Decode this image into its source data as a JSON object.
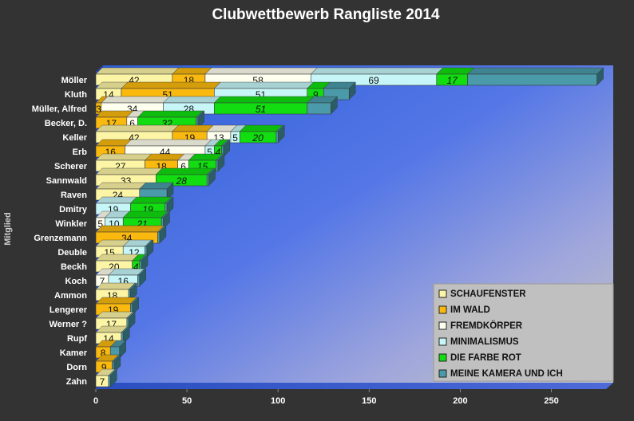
{
  "chart_data": {
    "type": "bar",
    "orientation": "horizontal",
    "stacked": true,
    "title": "Clubwettbewerb Rangliste 2014",
    "ylabel": "Mitglied",
    "xlabel": "",
    "xlim": [
      0,
      280
    ],
    "xticks": [
      0,
      50,
      100,
      150,
      200,
      250
    ],
    "grid": false,
    "legend_position": "bottom-right",
    "categories": [
      "Möller",
      "Kluth",
      "Müller, Alfred",
      "Becker, D.",
      "Keller",
      "Erb",
      "Scherer",
      "Sannwald",
      "Raven",
      "Dmitry",
      "Winkler",
      "Grenzemann",
      "Deuble",
      "Beckh",
      "Koch",
      "Ammon",
      "Lengerer",
      "Werner ?",
      "Rupf",
      "Kamer",
      "Dorn",
      "Zahn"
    ],
    "series": [
      {
        "name": "SCHAUFENSTER",
        "color": "#fdf5a6",
        "values": [
          42,
          14,
          0,
          0,
          42,
          0,
          27,
          33,
          24,
          0,
          0,
          0,
          15,
          20,
          0,
          18,
          0,
          17,
          14,
          0,
          0,
          7
        ]
      },
      {
        "name": "IM WALD",
        "color": "#f9b90e",
        "values": [
          18,
          51,
          3,
          17,
          19,
          16,
          18,
          0,
          0,
          0,
          0,
          34,
          0,
          0,
          0,
          0,
          19,
          0,
          0,
          8,
          9,
          0
        ]
      },
      {
        "name": "FREMDKÖRPER",
        "color": "#fffff0",
        "values": [
          58,
          0,
          34,
          6,
          13,
          44,
          6,
          0,
          0,
          0,
          5,
          0,
          0,
          0,
          7,
          0,
          0,
          0,
          0,
          0,
          0,
          0
        ]
      },
      {
        "name": "MINIMALISMUS",
        "color": "#c6f6f8",
        "values": [
          69,
          51,
          28,
          0,
          5,
          5,
          0,
          0,
          0,
          19,
          10,
          0,
          12,
          0,
          16,
          0,
          0,
          0,
          0,
          0,
          0,
          0
        ]
      },
      {
        "name": "DIE FARBE ROT",
        "color": "#11dd11",
        "values": [
          17,
          9,
          51,
          32,
          20,
          4,
          15,
          28,
          0,
          19,
          21,
          0,
          0,
          4,
          0,
          0,
          0,
          0,
          0,
          0,
          0,
          0
        ]
      },
      {
        "name": "MEINE KAMERA UND ICH",
        "color": "#4a9aaa",
        "values": [
          71,
          14,
          13,
          1,
          1,
          1,
          1,
          1,
          15,
          1,
          1,
          1,
          1,
          1,
          1,
          1,
          1,
          1,
          1,
          5,
          1,
          1
        ]
      }
    ],
    "series_label_style": [
      "normal",
      "normal",
      "normal",
      "normal",
      "italic",
      "none"
    ]
  }
}
